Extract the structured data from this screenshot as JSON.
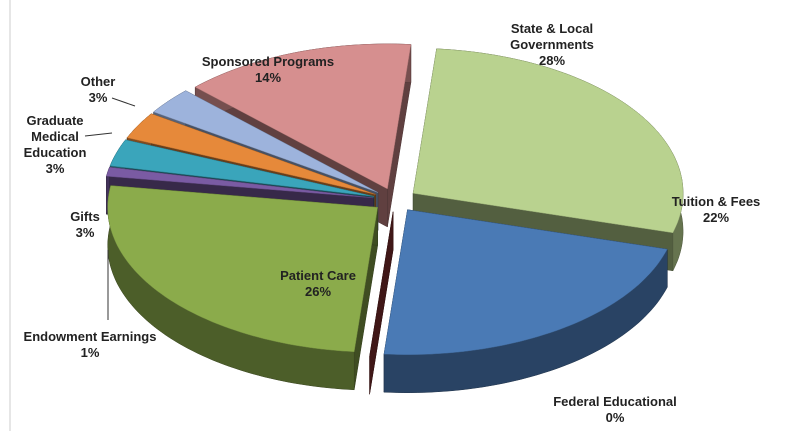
{
  "chart_data": {
    "type": "pie",
    "categories": [
      "State & Local Governments",
      "Tuition & Fees",
      "Federal Educational",
      "Patient Care",
      "Endowment Earnings",
      "Gifts",
      "Graduate Medical Education",
      "Other",
      "Sponsored Programs"
    ],
    "values": [
      28,
      22,
      0,
      26,
      1,
      3,
      3,
      3,
      14
    ],
    "value_labels": [
      "28%",
      "22%",
      "0%",
      "26%",
      "1%",
      "3%",
      "3%",
      "3%",
      "14%"
    ],
    "colors": [
      "#b9d28f",
      "#4a7ab5",
      "#8e3434",
      "#8bab4b",
      "#7a5ba3",
      "#3aa5bb",
      "#e6893a",
      "#9db3dc",
      "#d68f8f"
    ]
  }
}
